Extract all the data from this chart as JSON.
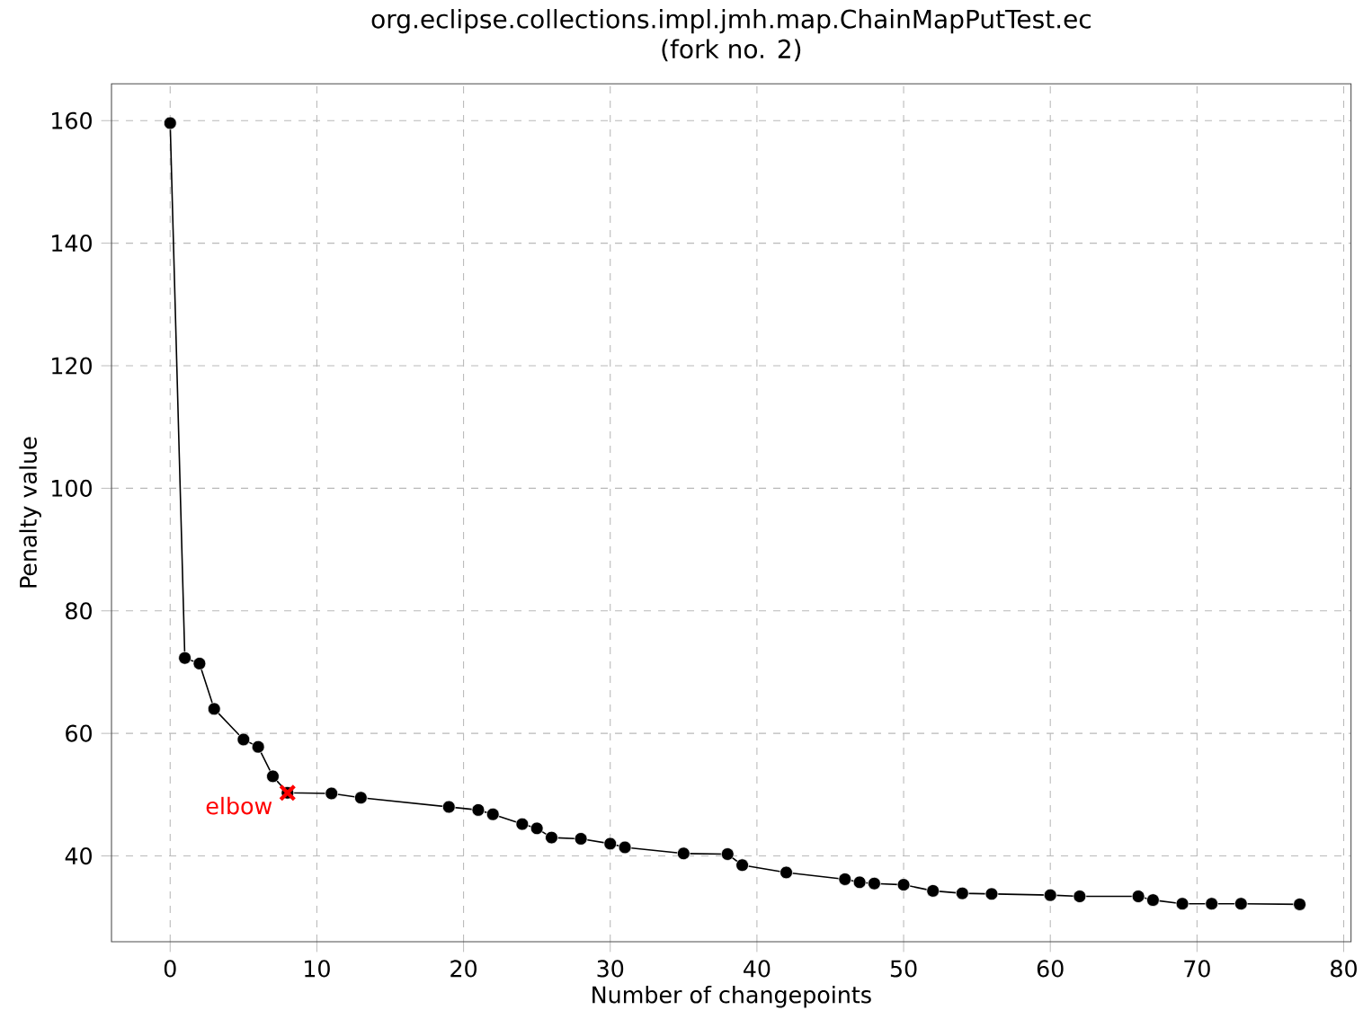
{
  "chart_data": {
    "type": "line",
    "title": "org.eclipse.collections.impl.jmh.map.ChainMapPutTest.ec",
    "subtitle": "(fork no. 2)",
    "xlabel": "Number of changepoints",
    "ylabel": "Penalty value",
    "x": [
      0,
      1,
      2,
      3,
      5,
      6,
      7,
      8,
      11,
      13,
      19,
      21,
      22,
      24,
      25,
      26,
      28,
      30,
      31,
      35,
      38,
      39,
      42,
      46,
      47,
      48,
      50,
      52,
      54,
      56,
      60,
      62,
      66,
      67,
      69,
      71,
      73,
      77
    ],
    "series": [
      {
        "color": "#000000",
        "values": [
          159.6,
          72.3,
          71.4,
          64,
          59,
          57.8,
          53,
          50.3,
          50.2,
          49.5,
          48,
          47.5,
          46.8,
          45.2,
          44.5,
          43,
          42.8,
          42,
          41.4,
          40.4,
          40.3,
          38.5,
          37.3,
          36.2,
          35.7,
          35.5,
          35.3,
          34.3,
          33.9,
          33.8,
          33.6,
          33.4,
          33.4,
          32.8,
          32.2,
          32.2,
          32.2,
          32.1
        ]
      }
    ],
    "xlim": [
      -4,
      80.5
    ],
    "ylim": [
      26,
      166
    ],
    "xticks": [
      0,
      10,
      20,
      30,
      40,
      50,
      60,
      70,
      80
    ],
    "yticks": [
      40,
      60,
      80,
      100,
      120,
      140,
      160
    ],
    "grid": true,
    "marker": "circle",
    "line_style": "solid",
    "annotations": [
      {
        "text": "elbow",
        "x": 8,
        "y": 50.3
      }
    ]
  }
}
